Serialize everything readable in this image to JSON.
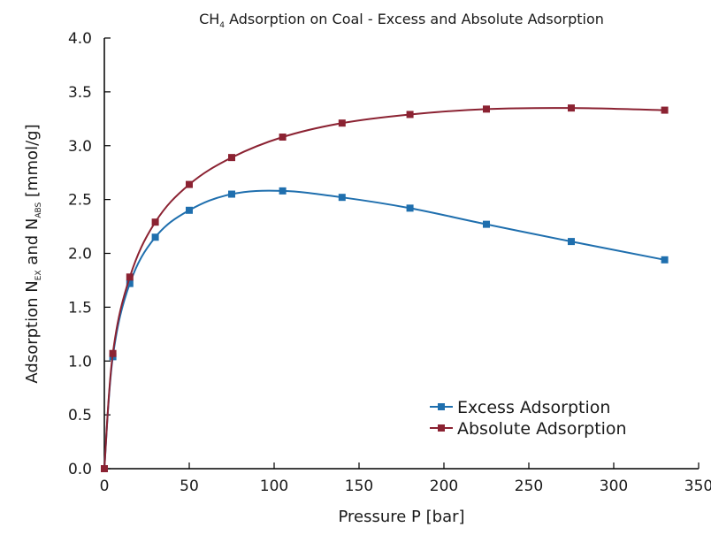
{
  "chart_data": {
    "type": "line",
    "title": {
      "prefix": "CH",
      "sub": "4",
      "suffix": " Adsorption on Coal - Excess and Absolute Adsorption"
    },
    "xlabel": "Pressure P [bar]",
    "ylabel": {
      "part1": "Adsorption N",
      "sub1": "EX",
      "part2": " and N",
      "sub2": "ABS",
      "part3": " [mmol/g]"
    },
    "xlim": [
      0,
      350
    ],
    "ylim": [
      0,
      4.0
    ],
    "x_ticks": [
      0,
      50,
      100,
      150,
      200,
      250,
      300,
      350
    ],
    "x_tick_labels": [
      "0",
      "50",
      "100",
      "150",
      "200",
      "250",
      "300",
      "350"
    ],
    "y_ticks": [
      0,
      0.5,
      1.0,
      1.5,
      2.0,
      2.5,
      3.0,
      3.5,
      4.0
    ],
    "y_tick_labels": [
      "0.0",
      "0.5",
      "1.0",
      "1.5",
      "2.0",
      "2.5",
      "3.0",
      "3.5",
      "4.0"
    ],
    "grid": false,
    "legend_position": "bottom-right",
    "series": [
      {
        "name": "Excess Adsorption",
        "color": "#1f6fae",
        "marker": "square",
        "x": [
          0,
          5,
          15,
          30,
          50,
          75,
          105,
          140,
          180,
          225,
          275,
          330
        ],
        "y": [
          0.0,
          1.04,
          1.72,
          2.15,
          2.4,
          2.55,
          2.58,
          2.52,
          2.42,
          2.27,
          2.11,
          1.94
        ]
      },
      {
        "name": "Absolute Adsorption",
        "color": "#8b2232",
        "marker": "square",
        "x": [
          0,
          5,
          15,
          30,
          50,
          75,
          105,
          140,
          180,
          225,
          275,
          330
        ],
        "y": [
          0.0,
          1.07,
          1.78,
          2.29,
          2.64,
          2.89,
          3.08,
          3.21,
          3.29,
          3.34,
          3.35,
          3.33
        ]
      }
    ]
  }
}
